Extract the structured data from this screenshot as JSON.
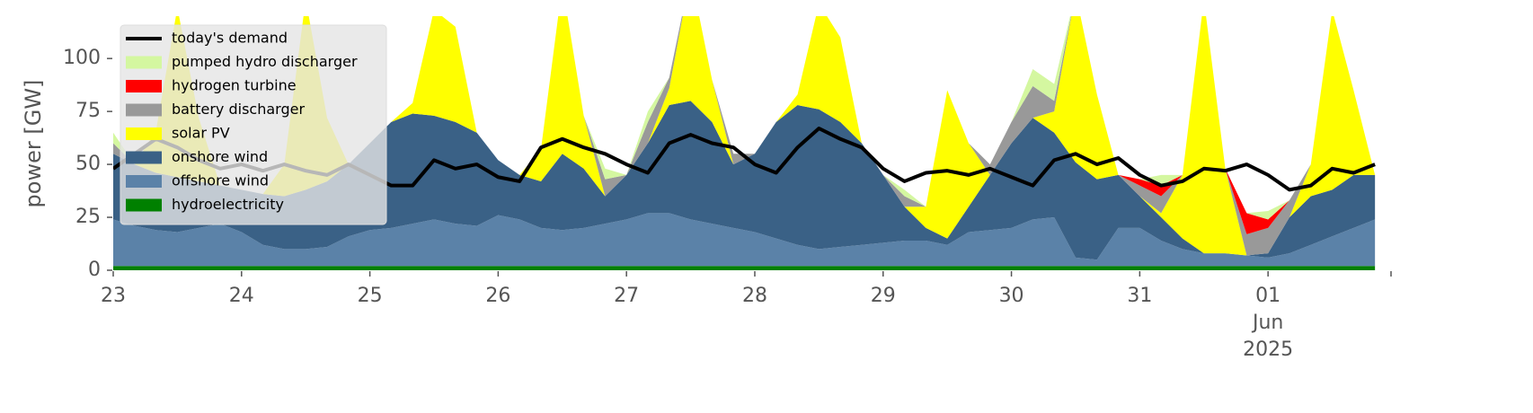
{
  "chart_data": {
    "type": "area",
    "ylabel": "power [GW]",
    "x": [
      0,
      4,
      8,
      12,
      16,
      20,
      24,
      28,
      32,
      36,
      40,
      44,
      48,
      52,
      56,
      60,
      64,
      68,
      72,
      76,
      80,
      84,
      88,
      92,
      96,
      100,
      104,
      108,
      112,
      116,
      120,
      124,
      128,
      132,
      136,
      140,
      144,
      148,
      152,
      156,
      160,
      164,
      168,
      172,
      176,
      180,
      184,
      188,
      192,
      196,
      200,
      204,
      208,
      212,
      216,
      220,
      224,
      228,
      232,
      236
    ],
    "xlim": [
      0,
      239
    ],
    "xticks": [
      {
        "value": 0,
        "label": "23"
      },
      {
        "value": 24,
        "label": "24"
      },
      {
        "value": 48,
        "label": "25"
      },
      {
        "value": 72,
        "label": "26"
      },
      {
        "value": 96,
        "label": "27"
      },
      {
        "value": 120,
        "label": "28"
      },
      {
        "value": 144,
        "label": "29"
      },
      {
        "value": 168,
        "label": "30"
      },
      {
        "value": 192,
        "label": "31"
      },
      {
        "value": 216,
        "label": "01"
      }
    ],
    "x_sublabels": [
      {
        "value": 216,
        "label": "Jun"
      },
      {
        "value": 216,
        "label": "2025"
      }
    ],
    "ylim": [
      0,
      120
    ],
    "yticks": [
      0,
      25,
      50,
      75,
      100
    ],
    "grid": false,
    "legend": "upper left",
    "line_series": {
      "name": "today's demand",
      "color": "#000000",
      "values": [
        48,
        55,
        62,
        58,
        52,
        48,
        50,
        47,
        50,
        47,
        45,
        50,
        45,
        40,
        40,
        52,
        48,
        50,
        44,
        42,
        58,
        62,
        58,
        55,
        50,
        46,
        60,
        64,
        60,
        58,
        50,
        46,
        58,
        67,
        62,
        58,
        48,
        42,
        46,
        47,
        45,
        48,
        44,
        40,
        52,
        55,
        50,
        53,
        45,
        40,
        42,
        48,
        47,
        50,
        45,
        38,
        40,
        48,
        46,
        50
      ]
    },
    "series": [
      {
        "name": "hydroelectricity",
        "color": "#008000",
        "values": [
          2,
          2,
          2,
          2,
          2,
          2,
          2,
          2,
          2,
          2,
          2,
          2,
          2,
          2,
          2,
          2,
          2,
          2,
          2,
          2,
          2,
          2,
          2,
          2,
          2,
          2,
          2,
          2,
          2,
          2,
          2,
          2,
          2,
          2,
          2,
          2,
          2,
          2,
          2,
          2,
          2,
          2,
          2,
          2,
          2,
          2,
          2,
          2,
          2,
          2,
          2,
          2,
          2,
          2,
          2,
          2,
          2,
          2,
          2,
          2
        ]
      },
      {
        "name": "offshore wind",
        "color": "#5b82a8",
        "values": [
          22,
          19,
          17,
          16,
          18,
          20,
          16,
          10,
          8,
          8,
          9,
          14,
          17,
          18,
          20,
          22,
          20,
          19,
          24,
          22,
          18,
          17,
          18,
          20,
          22,
          25,
          25,
          22,
          20,
          18,
          16,
          13,
          10,
          8,
          9,
          10,
          11,
          12,
          12,
          10,
          16,
          17,
          18,
          22,
          23,
          4,
          3,
          18,
          18,
          12,
          8,
          6,
          6,
          5,
          4,
          6,
          10,
          14,
          18,
          22
        ]
      },
      {
        "name": "onshore wind",
        "color": "#3a6186",
        "values": [
          31,
          29,
          27,
          26,
          22,
          18,
          20,
          24,
          25,
          28,
          31,
          34,
          41,
          50,
          52,
          49,
          48,
          44,
          26,
          21,
          22,
          36,
          28,
          13,
          21,
          33,
          51,
          56,
          48,
          30,
          37,
          55,
          66,
          66,
          59,
          48,
          32,
          16,
          6,
          3,
          12,
          26,
          40,
          48,
          40,
          45,
          38,
          25,
          15,
          11,
          5,
          0,
          0,
          0,
          2,
          17,
          23,
          22,
          25,
          21
        ]
      },
      {
        "name": "solar PV",
        "color": "#ffff00",
        "values": [
          0,
          0,
          20,
          80,
          30,
          0,
          0,
          0,
          15,
          90,
          30,
          0,
          0,
          0,
          5,
          50,
          45,
          0,
          0,
          0,
          15,
          80,
          25,
          0,
          0,
          0,
          8,
          60,
          20,
          0,
          0,
          0,
          5,
          50,
          40,
          0,
          0,
          0,
          10,
          70,
          30,
          0,
          0,
          0,
          10,
          80,
          40,
          0,
          0,
          2,
          30,
          120,
          40,
          0,
          0,
          0,
          15,
          85,
          40,
          0
        ]
      },
      {
        "name": "battery discharger",
        "color": "#999999",
        "values": [
          5,
          0,
          0,
          0,
          0,
          0,
          0,
          0,
          0,
          0,
          0,
          0,
          0,
          0,
          0,
          0,
          0,
          0,
          0,
          0,
          0,
          0,
          0,
          8,
          0,
          10,
          5,
          0,
          0,
          5,
          0,
          0,
          0,
          0,
          0,
          0,
          0,
          5,
          0,
          0,
          0,
          5,
          10,
          15,
          5,
          0,
          0,
          0,
          5,
          8,
          0,
          0,
          0,
          10,
          12,
          8,
          0,
          0,
          0,
          0
        ]
      },
      {
        "name": "hydrogen turbine",
        "color": "#ff0000",
        "values": [
          0,
          0,
          0,
          0,
          0,
          0,
          0,
          0,
          0,
          0,
          0,
          0,
          0,
          0,
          0,
          0,
          0,
          0,
          0,
          0,
          0,
          0,
          0,
          0,
          0,
          0,
          0,
          0,
          0,
          0,
          0,
          0,
          0,
          0,
          0,
          0,
          0,
          0,
          0,
          0,
          0,
          0,
          0,
          0,
          0,
          0,
          0,
          0,
          3,
          5,
          0,
          0,
          0,
          10,
          4,
          0,
          0,
          0,
          0,
          0
        ]
      },
      {
        "name": "pumped hydro discharger",
        "color": "#d4f7a0",
        "values": [
          5,
          0,
          0,
          0,
          0,
          0,
          0,
          0,
          0,
          0,
          0,
          0,
          0,
          0,
          0,
          0,
          0,
          0,
          0,
          0,
          0,
          0,
          0,
          5,
          0,
          5,
          0,
          0,
          0,
          0,
          0,
          0,
          0,
          0,
          0,
          0,
          0,
          3,
          0,
          0,
          0,
          0,
          0,
          8,
          8,
          0,
          0,
          0,
          0,
          5,
          0,
          0,
          0,
          0,
          4,
          0,
          0,
          0,
          0,
          0
        ]
      }
    ]
  }
}
